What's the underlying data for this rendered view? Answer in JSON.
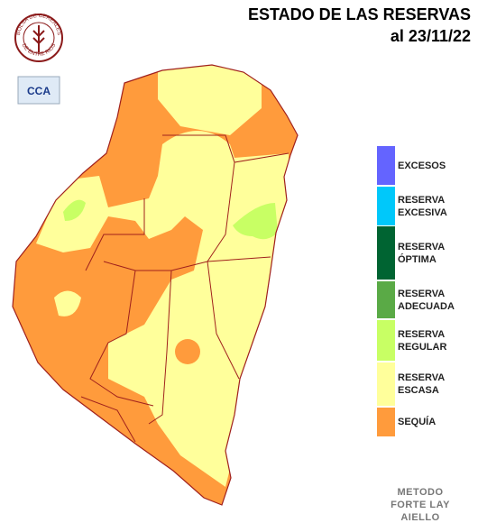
{
  "header": {
    "title": "ESTADO DE LAS RESERVAS",
    "date": "al 23/11/22"
  },
  "logo": {
    "top": "BOLSA DE CEREALES",
    "bottom": "DE ENTRE RIOS",
    "badge": "CCA"
  },
  "legend": [
    {
      "label": "EXCESOS",
      "color": "#6464ff"
    },
    {
      "label": "RESERVA EXCESIVA",
      "color": "#00c8fa"
    },
    {
      "label": "RESERVA ÓPTIMA",
      "color": "#006432"
    },
    {
      "label": "RESERVA ADECUADA",
      "color": "#5aaa46"
    },
    {
      "label": "RESERVA REGULAR",
      "color": "#c8ff64"
    },
    {
      "label": "RESERVA ESCASA",
      "color": "#ffff9b"
    },
    {
      "label": "SEQUÍA",
      "color": "#ff9b3c"
    }
  ],
  "method": [
    "METODO",
    "FORTE LAY",
    "AIELLO"
  ]
}
